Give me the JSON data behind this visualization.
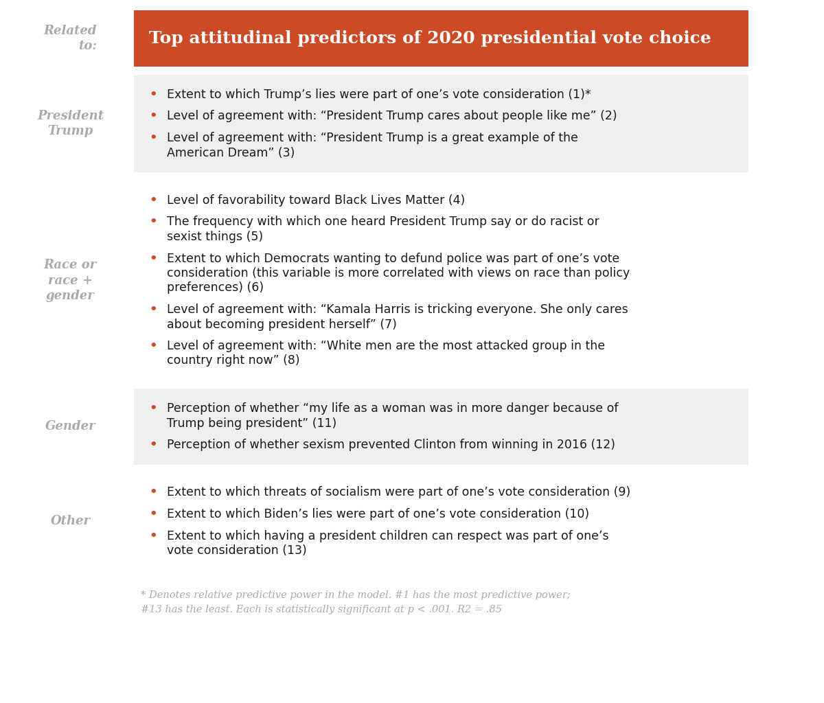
{
  "title": "Top attitudinal predictors of 2020 presidential vote choice",
  "header_label": "Related\nto:",
  "header_bg": "#cc4a25",
  "header_text_color": "#ffffff",
  "label_color": "#aaaaaa",
  "bullet_color": "#cc4a25",
  "text_color": "#1a1a1a",
  "bg_color": "#ffffff",
  "row_bg_light": "#efefef",
  "row_bg_white": "#ffffff",
  "footnote_color": "#aaaaaa",
  "footnote": "* Denotes relative predictive power in the model. #1 has the most predictive power;\n#13 has the least. Each is statistically significant at p < .001. R2 = .85",
  "sections": [
    {
      "label": "President\nTrump",
      "bg": "light",
      "items": [
        "Extent to which Trump’s lies were part of one’s vote consideration (1)*",
        "Level of agreement with: “President Trump cares about people like me” (2)",
        "Level of agreement with: “President Trump is a great example of the\nAmerican Dream” (3)"
      ]
    },
    {
      "label": "Race or\nrace +\ngender",
      "bg": "white",
      "items": [
        "Level of favorability toward Black Lives Matter (4)",
        "The frequency with which one heard President Trump say or do racist or\nsexist things (5)",
        "Extent to which Democrats wanting to defund police was part of one’s vote\nconsideration (this variable is more correlated with views on race than policy\npreferences) (6)",
        "Level of agreement with: “Kamala Harris is tricking everyone. She only cares\nabout becoming president herself” (7)",
        "Level of agreement with: “White men are the most attacked group in the\ncountry right now” (8)"
      ]
    },
    {
      "label": "Gender",
      "bg": "light",
      "items": [
        "Perception of whether “my life as a woman was in more danger because of\nTrump being president” (11)",
        "Perception of whether sexism prevented Clinton from winning in 2016 (12)"
      ]
    },
    {
      "label": "Other",
      "bg": "white",
      "items": [
        "Extent to which threats of socialism were part of one’s vote consideration (9)",
        "Extent to which Biden’s lies were part of one’s vote consideration (10)",
        "Extent to which having a president children can respect was part of one’s\nvote consideration (13)"
      ]
    }
  ]
}
